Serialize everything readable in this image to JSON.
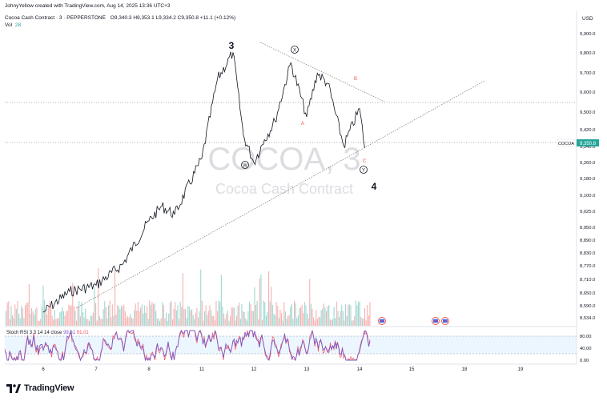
{
  "header": {
    "credit": "JohnyYellow created with TradingView.com, Aug 14, 2025 13:36 UTC+3",
    "symbol_line": "Cocoa Cash Contract · 3 · PEPPERSTONE",
    "ohlc": "O9,340.3  H9,353.1  L9,334.2  C9,350.8  +11.1 (+0.12%)",
    "volume_label": "Vol",
    "volume_value": "28"
  },
  "watermark": {
    "ticker": "COCOA, 3",
    "name": "Cocoa Cash Contract"
  },
  "price_axis": {
    "currency": "USD",
    "current_symbol": "COCOA",
    "current_price": "9,350.8",
    "ticks": [
      "9,900.0",
      "9,800.0",
      "9,700.0",
      "9,600.0",
      "9,500.0",
      "9,420.0",
      "9,340.0",
      "9,260.0",
      "9,180.0",
      "9,100.0",
      "9,025.0",
      "8,950.0",
      "8,890.0",
      "8,830.0",
      "8,770.0",
      "8,710.0",
      "8,650.0",
      "8,590.0",
      "8,534.0"
    ]
  },
  "stoch_panel": {
    "label": "Stoch RSI",
    "params": "3 3 14 14 close",
    "k_value": "99.51",
    "d_value": "91.01",
    "ticks": [
      "80.00",
      "40.00",
      "0.00"
    ]
  },
  "time_axis": {
    "ticks": [
      "6",
      "7",
      "8",
      "11",
      "12",
      "13",
      "14",
      "15",
      "18",
      "19"
    ]
  },
  "wave_labels": {
    "w3": "3",
    "w4": "4",
    "x": "X",
    "w": "W",
    "y": "Y",
    "a": "A",
    "b": "B",
    "c": "C"
  },
  "footer": {
    "brand": "TradingView"
  },
  "colors": {
    "up": "#26a69a",
    "down": "#ef5350",
    "candle": "#131722",
    "stoch_k": "#7e57c2",
    "stoch_d": "#f7525f",
    "stoch_band": "#e3f2fd",
    "current_price_bg": "#26a69a",
    "trendline": "#777777"
  },
  "chart_data": {
    "type": "line",
    "title": "",
    "xlabel": "",
    "ylabel": "USD",
    "x_ticks": [
      "6",
      "7",
      "8",
      "11",
      "12",
      "13",
      "14",
      "15",
      "18",
      "19"
    ],
    "ylim": [
      8510,
      9990
    ],
    "series": [
      {
        "name": "Cocoa Cash Contract",
        "x": [
          "6",
          "6.5",
          "7",
          "7.5",
          "8",
          "8.5",
          "9",
          "11",
          "11.3",
          "11.6",
          "11.8",
          "12",
          "12.2",
          "12.4",
          "12.7",
          "13",
          "13.2",
          "13.4",
          "13.7",
          "14",
          "14.1"
        ],
        "values": [
          8560,
          8660,
          8690,
          8790,
          9000,
          9070,
          9030,
          9300,
          9680,
          9810,
          9410,
          9280,
          9390,
          9480,
          9760,
          9500,
          9710,
          9660,
          9360,
          9540,
          9350.8
        ]
      }
    ],
    "annotations": [
      "3",
      "X",
      "W",
      "A",
      "B",
      "C",
      "Y",
      "4"
    ],
    "legend": "none",
    "grid": false
  }
}
